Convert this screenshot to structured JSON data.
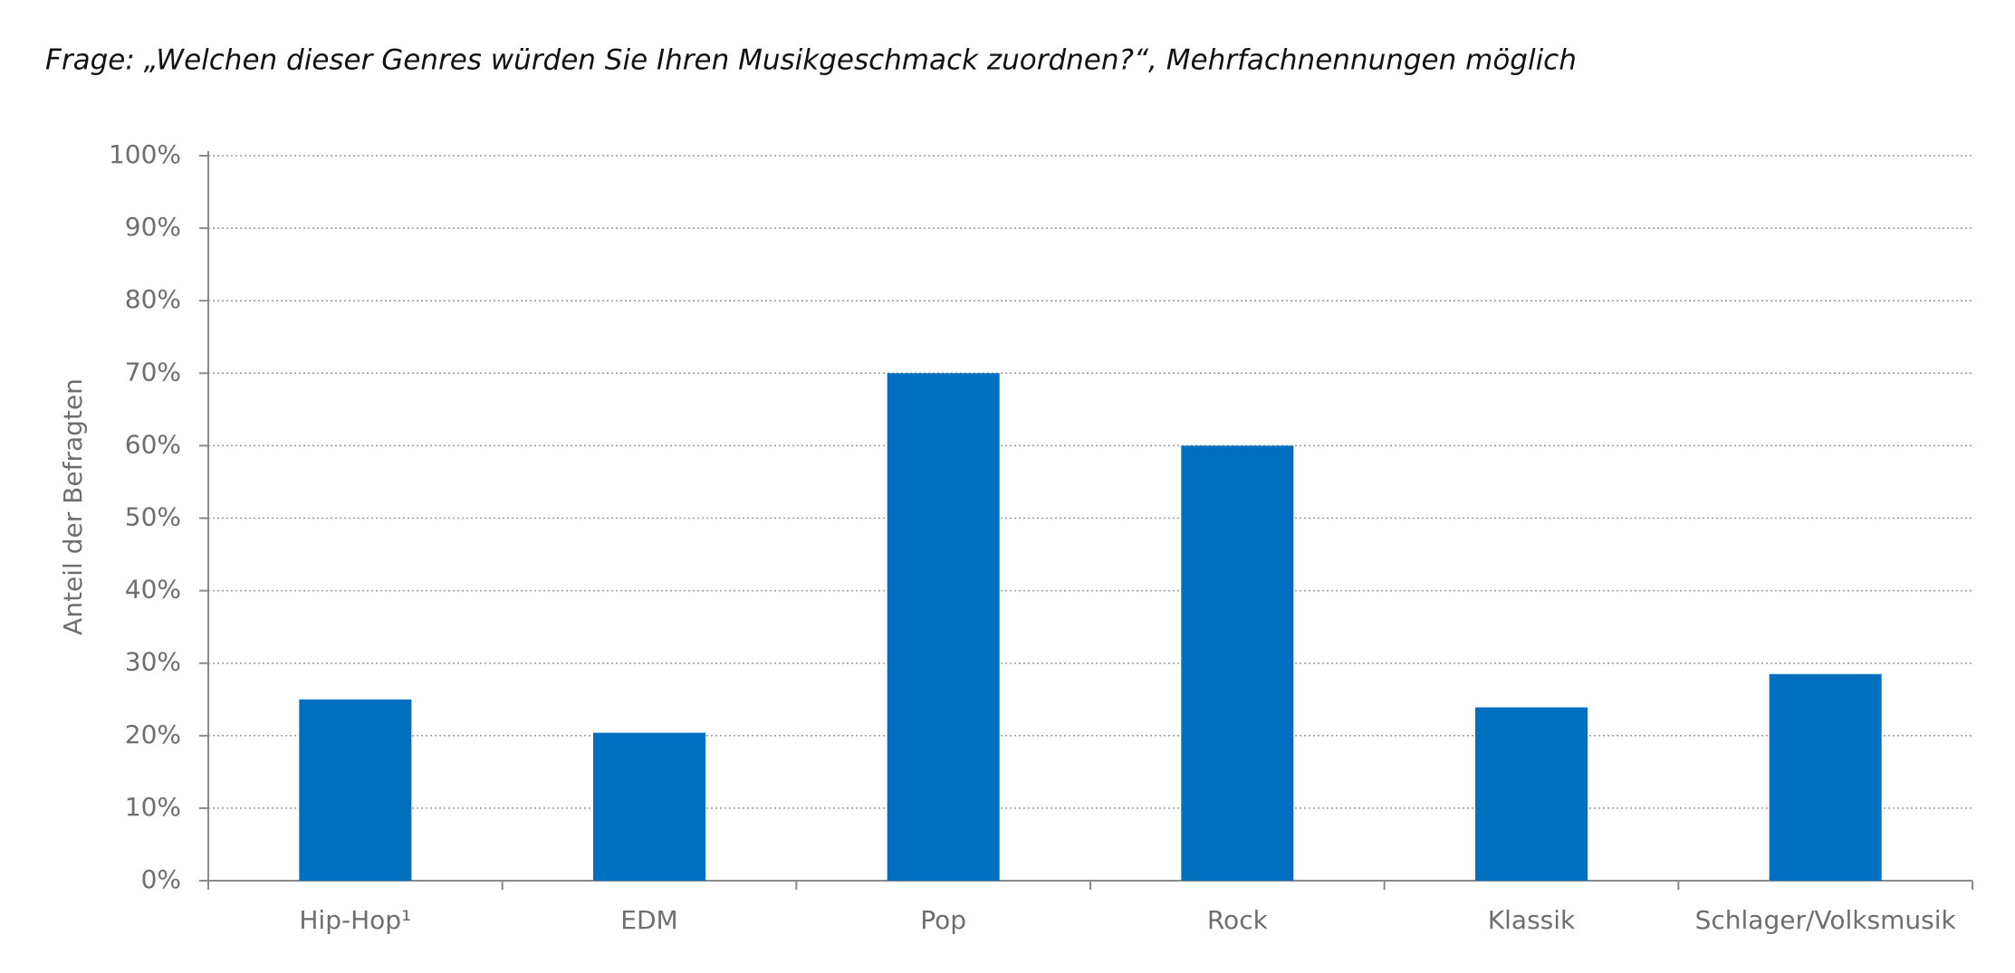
{
  "chart_data": {
    "type": "bar",
    "title": "Frage: „Welchen dieser Genres würden Sie Ihren Musikgeschmack zuordnen?“, Mehrfachnennungen möglich",
    "y_label": "Anteil der Befragten",
    "categories": [
      "Hip-Hop¹",
      "EDM",
      "Pop",
      "Rock",
      "Klassik",
      "Schlager/Volksmusik"
    ],
    "values": [
      25,
      20.4,
      70,
      60,
      23.9,
      28.5
    ],
    "color": "#006fc0",
    "ylim": [
      0,
      100
    ],
    "yticks": [
      {
        "value": 0,
        "label": "0%"
      },
      {
        "value": 10,
        "label": "10%"
      },
      {
        "value": 20,
        "label": "20%"
      },
      {
        "value": 30,
        "label": "30%"
      },
      {
        "value": 40,
        "label": "40%"
      },
      {
        "value": 50,
        "label": "50%"
      },
      {
        "value": 60,
        "label": "60%"
      },
      {
        "value": 70,
        "label": "70%"
      },
      {
        "value": 80,
        "label": "80%"
      },
      {
        "value": 90,
        "label": "90%"
      },
      {
        "value": 100,
        "label": "100%"
      }
    ],
    "grid": true
  }
}
